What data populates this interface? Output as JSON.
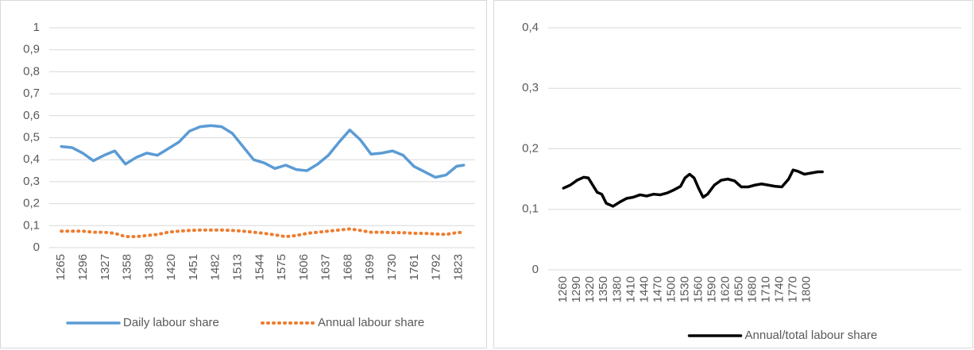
{
  "chart_data": [
    {
      "type": "line",
      "x": [
        1265,
        1280,
        1295,
        1310,
        1325,
        1340,
        1355,
        1370,
        1385,
        1400,
        1415,
        1430,
        1445,
        1460,
        1475,
        1490,
        1505,
        1520,
        1535,
        1550,
        1565,
        1580,
        1595,
        1610,
        1625,
        1640,
        1655,
        1670,
        1685,
        1700,
        1715,
        1730,
        1745,
        1760,
        1775,
        1790,
        1805,
        1820,
        1830
      ],
      "series": [
        {
          "name": "Daily labour share",
          "color": "#5b9bd5",
          "style": "solid",
          "values": [
            0.46,
            0.455,
            0.43,
            0.395,
            0.42,
            0.44,
            0.38,
            0.41,
            0.43,
            0.42,
            0.45,
            0.48,
            0.53,
            0.55,
            0.555,
            0.55,
            0.52,
            0.46,
            0.4,
            0.385,
            0.36,
            0.375,
            0.355,
            0.35,
            0.38,
            0.42,
            0.48,
            0.535,
            0.49,
            0.425,
            0.43,
            0.44,
            0.42,
            0.37,
            0.345,
            0.32,
            0.33,
            0.37,
            0.375
          ]
        },
        {
          "name": "Annual labour share",
          "color": "#ed7d31",
          "style": "dotted",
          "values": [
            0.075,
            0.075,
            0.075,
            0.07,
            0.07,
            0.065,
            0.05,
            0.05,
            0.055,
            0.06,
            0.07,
            0.075,
            0.078,
            0.08,
            0.08,
            0.08,
            0.078,
            0.075,
            0.07,
            0.065,
            0.058,
            0.05,
            0.055,
            0.065,
            0.07,
            0.075,
            0.08,
            0.085,
            0.078,
            0.07,
            0.07,
            0.068,
            0.068,
            0.065,
            0.065,
            0.062,
            0.06,
            0.068,
            0.07
          ]
        }
      ],
      "xlim": [
        1248,
        1846
      ],
      "xticks": [
        1265,
        1296,
        1327,
        1358,
        1389,
        1420,
        1451,
        1482,
        1513,
        1544,
        1575,
        1606,
        1637,
        1668,
        1699,
        1730,
        1761,
        1792,
        1823
      ],
      "ylim": [
        0,
        1
      ],
      "yticks": [
        0,
        {
          "value": 0.1,
          "label": "0,1"
        },
        {
          "value": 0.2,
          "label": "0,2"
        },
        {
          "value": 0.3,
          "label": "0,3"
        },
        {
          "value": 0.4,
          "label": "0,4"
        },
        {
          "value": 0.5,
          "label": "0,5"
        },
        {
          "value": 0.6,
          "label": "0,6"
        },
        {
          "value": 0.7,
          "label": "0,7"
        },
        {
          "value": 0.8,
          "label": "0,8"
        },
        {
          "value": 0.9,
          "label": "0,9"
        },
        1
      ],
      "grid": true,
      "legend": "bottom"
    },
    {
      "type": "line",
      "x": [
        1260,
        1275,
        1290,
        1305,
        1315,
        1325,
        1335,
        1345,
        1355,
        1370,
        1385,
        1400,
        1415,
        1430,
        1445,
        1460,
        1475,
        1490,
        1505,
        1520,
        1530,
        1540,
        1550,
        1560,
        1570,
        1580,
        1595,
        1610,
        1625,
        1640,
        1655,
        1670,
        1685,
        1700,
        1715,
        1730,
        1745,
        1760,
        1770,
        1780,
        1795,
        1810,
        1825,
        1835
      ],
      "series": [
        {
          "name": "Annual/total labour share",
          "color": "#000000",
          "style": "solid",
          "values": [
            0.135,
            0.14,
            0.148,
            0.153,
            0.152,
            0.14,
            0.128,
            0.125,
            0.11,
            0.105,
            0.112,
            0.118,
            0.12,
            0.124,
            0.122,
            0.125,
            0.124,
            0.127,
            0.132,
            0.138,
            0.152,
            0.158,
            0.152,
            0.135,
            0.12,
            0.125,
            0.14,
            0.148,
            0.15,
            0.147,
            0.137,
            0.137,
            0.14,
            0.142,
            0.14,
            0.138,
            0.137,
            0.15,
            0.165,
            0.163,
            0.158,
            0.16,
            0.162,
            0.162
          ]
        }
      ],
      "xlim": [
        1226,
        1840
      ],
      "xticks": [
        1260,
        1290,
        1320,
        1350,
        1380,
        1410,
        1440,
        1470,
        1500,
        1530,
        1560,
        1590,
        1620,
        1650,
        1680,
        1710,
        1740,
        1770,
        1800
      ],
      "ylim": [
        0,
        0.4
      ],
      "yticks": [
        0,
        {
          "value": 0.1,
          "label": "0,1"
        },
        {
          "value": 0.2,
          "label": "0,2"
        },
        {
          "value": 0.3,
          "label": "0,3"
        },
        {
          "value": 0.4,
          "label": "0,4"
        }
      ],
      "grid": true,
      "legend": "bottom"
    }
  ]
}
